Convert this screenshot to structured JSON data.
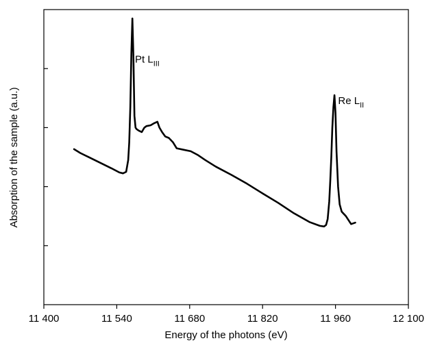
{
  "chart_data": {
    "type": "line",
    "xlabel": "Energy of the photons (eV)",
    "ylabel": "Absorption of the sample (a.u.)",
    "xlim": [
      11400,
      12100
    ],
    "ylim": [
      0,
      1
    ],
    "x_ticks": [
      11400,
      11540,
      11680,
      11820,
      11960,
      12100
    ],
    "x_tick_labels": [
      "11 400",
      "11 540",
      "11 680",
      "11 820",
      "11 960",
      "12 100"
    ],
    "y_ticks": [
      0.2,
      0.4,
      0.6,
      0.8
    ],
    "grid": false,
    "annotations": [
      {
        "main": "Pt L",
        "sub": "III",
        "x": 11575,
        "y": 0.82
      },
      {
        "main": "Re L",
        "sub": "II",
        "x": 11965,
        "y": 0.68
      }
    ],
    "series": [
      {
        "x": [
          11458,
          11470,
          11485,
          11500,
          11515,
          11530,
          11545,
          11552,
          11558,
          11562,
          11564,
          11566,
          11568,
          11570,
          11572,
          11574,
          11576,
          11578,
          11582,
          11588,
          11593,
          11597,
          11605,
          11612,
          11618,
          11622,
          11627,
          11633,
          11640,
          11648,
          11655,
          11668,
          11682,
          11695,
          11710,
          11730,
          11760,
          11790,
          11820,
          11850,
          11880,
          11910,
          11930,
          11938,
          11942,
          11945,
          11948,
          11950,
          11952,
          11954,
          11956,
          11958,
          11960,
          11962,
          11965,
          11968,
          11972,
          11980,
          11990,
          11998
        ],
        "y": [
          0.527,
          0.514,
          0.501,
          0.488,
          0.475,
          0.462,
          0.448,
          0.445,
          0.45,
          0.49,
          0.55,
          0.67,
          0.85,
          0.97,
          0.84,
          0.64,
          0.6,
          0.595,
          0.59,
          0.585,
          0.6,
          0.605,
          0.608,
          0.615,
          0.62,
          0.6,
          0.585,
          0.57,
          0.565,
          0.55,
          0.53,
          0.525,
          0.52,
          0.508,
          0.49,
          0.468,
          0.44,
          0.41,
          0.377,
          0.345,
          0.31,
          0.28,
          0.267,
          0.265,
          0.27,
          0.29,
          0.35,
          0.42,
          0.5,
          0.6,
          0.67,
          0.71,
          0.65,
          0.52,
          0.4,
          0.34,
          0.315,
          0.3,
          0.273,
          0.278
        ]
      }
    ]
  }
}
